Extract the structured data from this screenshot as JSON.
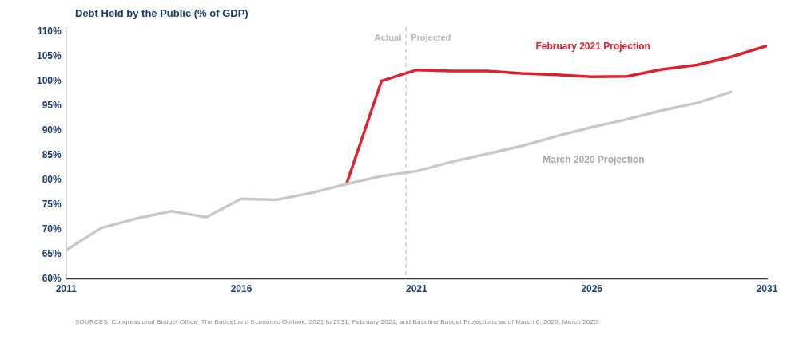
{
  "chart_data": {
    "type": "line",
    "title": "Debt Held by the Public (% of GDP)",
    "source": "SOURCES: Congressional Budget Office, The Budget and Economic Outlook: 2021 to 2031, February 2021, and Baseline Budget Projections as of March 6, 2020, March 2020.",
    "x": [
      2011,
      2012,
      2013,
      2014,
      2015,
      2016,
      2017,
      2018,
      2019,
      2020,
      2021,
      2022,
      2023,
      2024,
      2025,
      2026,
      2027,
      2028,
      2029,
      2030,
      2031
    ],
    "series": [
      {
        "name": "March 2020 Projection",
        "color": "#c8c8c8",
        "values": [
          65.8,
          70.3,
          72.2,
          73.7,
          72.5,
          76.2,
          76.0,
          77.4,
          79.2,
          80.8,
          81.8,
          83.7,
          85.3,
          86.9,
          88.9,
          90.7,
          92.3,
          94.1,
          95.6,
          97.9,
          null
        ]
      },
      {
        "name": "February 2021 Projection",
        "color": "#e0202e",
        "values": [
          null,
          null,
          null,
          null,
          null,
          null,
          null,
          null,
          79.2,
          100.1,
          102.3,
          102.1,
          102.1,
          101.6,
          101.3,
          100.9,
          101.0,
          102.4,
          103.3,
          105.0,
          107.2
        ]
      }
    ],
    "xlim": [
      2011,
      2031
    ],
    "xticks": [
      2011,
      2016,
      2021,
      2026,
      2031
    ],
    "ylim": [
      60,
      110
    ],
    "yticks": [
      {
        "value": 60,
        "label": "60%"
      },
      {
        "value": 65,
        "label": "65%"
      },
      {
        "value": 70,
        "label": "70%"
      },
      {
        "value": 75,
        "label": "75%"
      },
      {
        "value": 80,
        "label": "80%"
      },
      {
        "value": 85,
        "label": "85%"
      },
      {
        "value": 90,
        "label": "90%"
      },
      {
        "value": 95,
        "label": "95%"
      },
      {
        "value": 100,
        "label": "100%"
      },
      {
        "value": 105,
        "label": "105%"
      },
      {
        "value": 110,
        "label": "110%"
      }
    ],
    "grid": false,
    "divider": {
      "x": 2020.7,
      "before": "Actual",
      "after": "Projected",
      "line_style": "dashed"
    }
  }
}
